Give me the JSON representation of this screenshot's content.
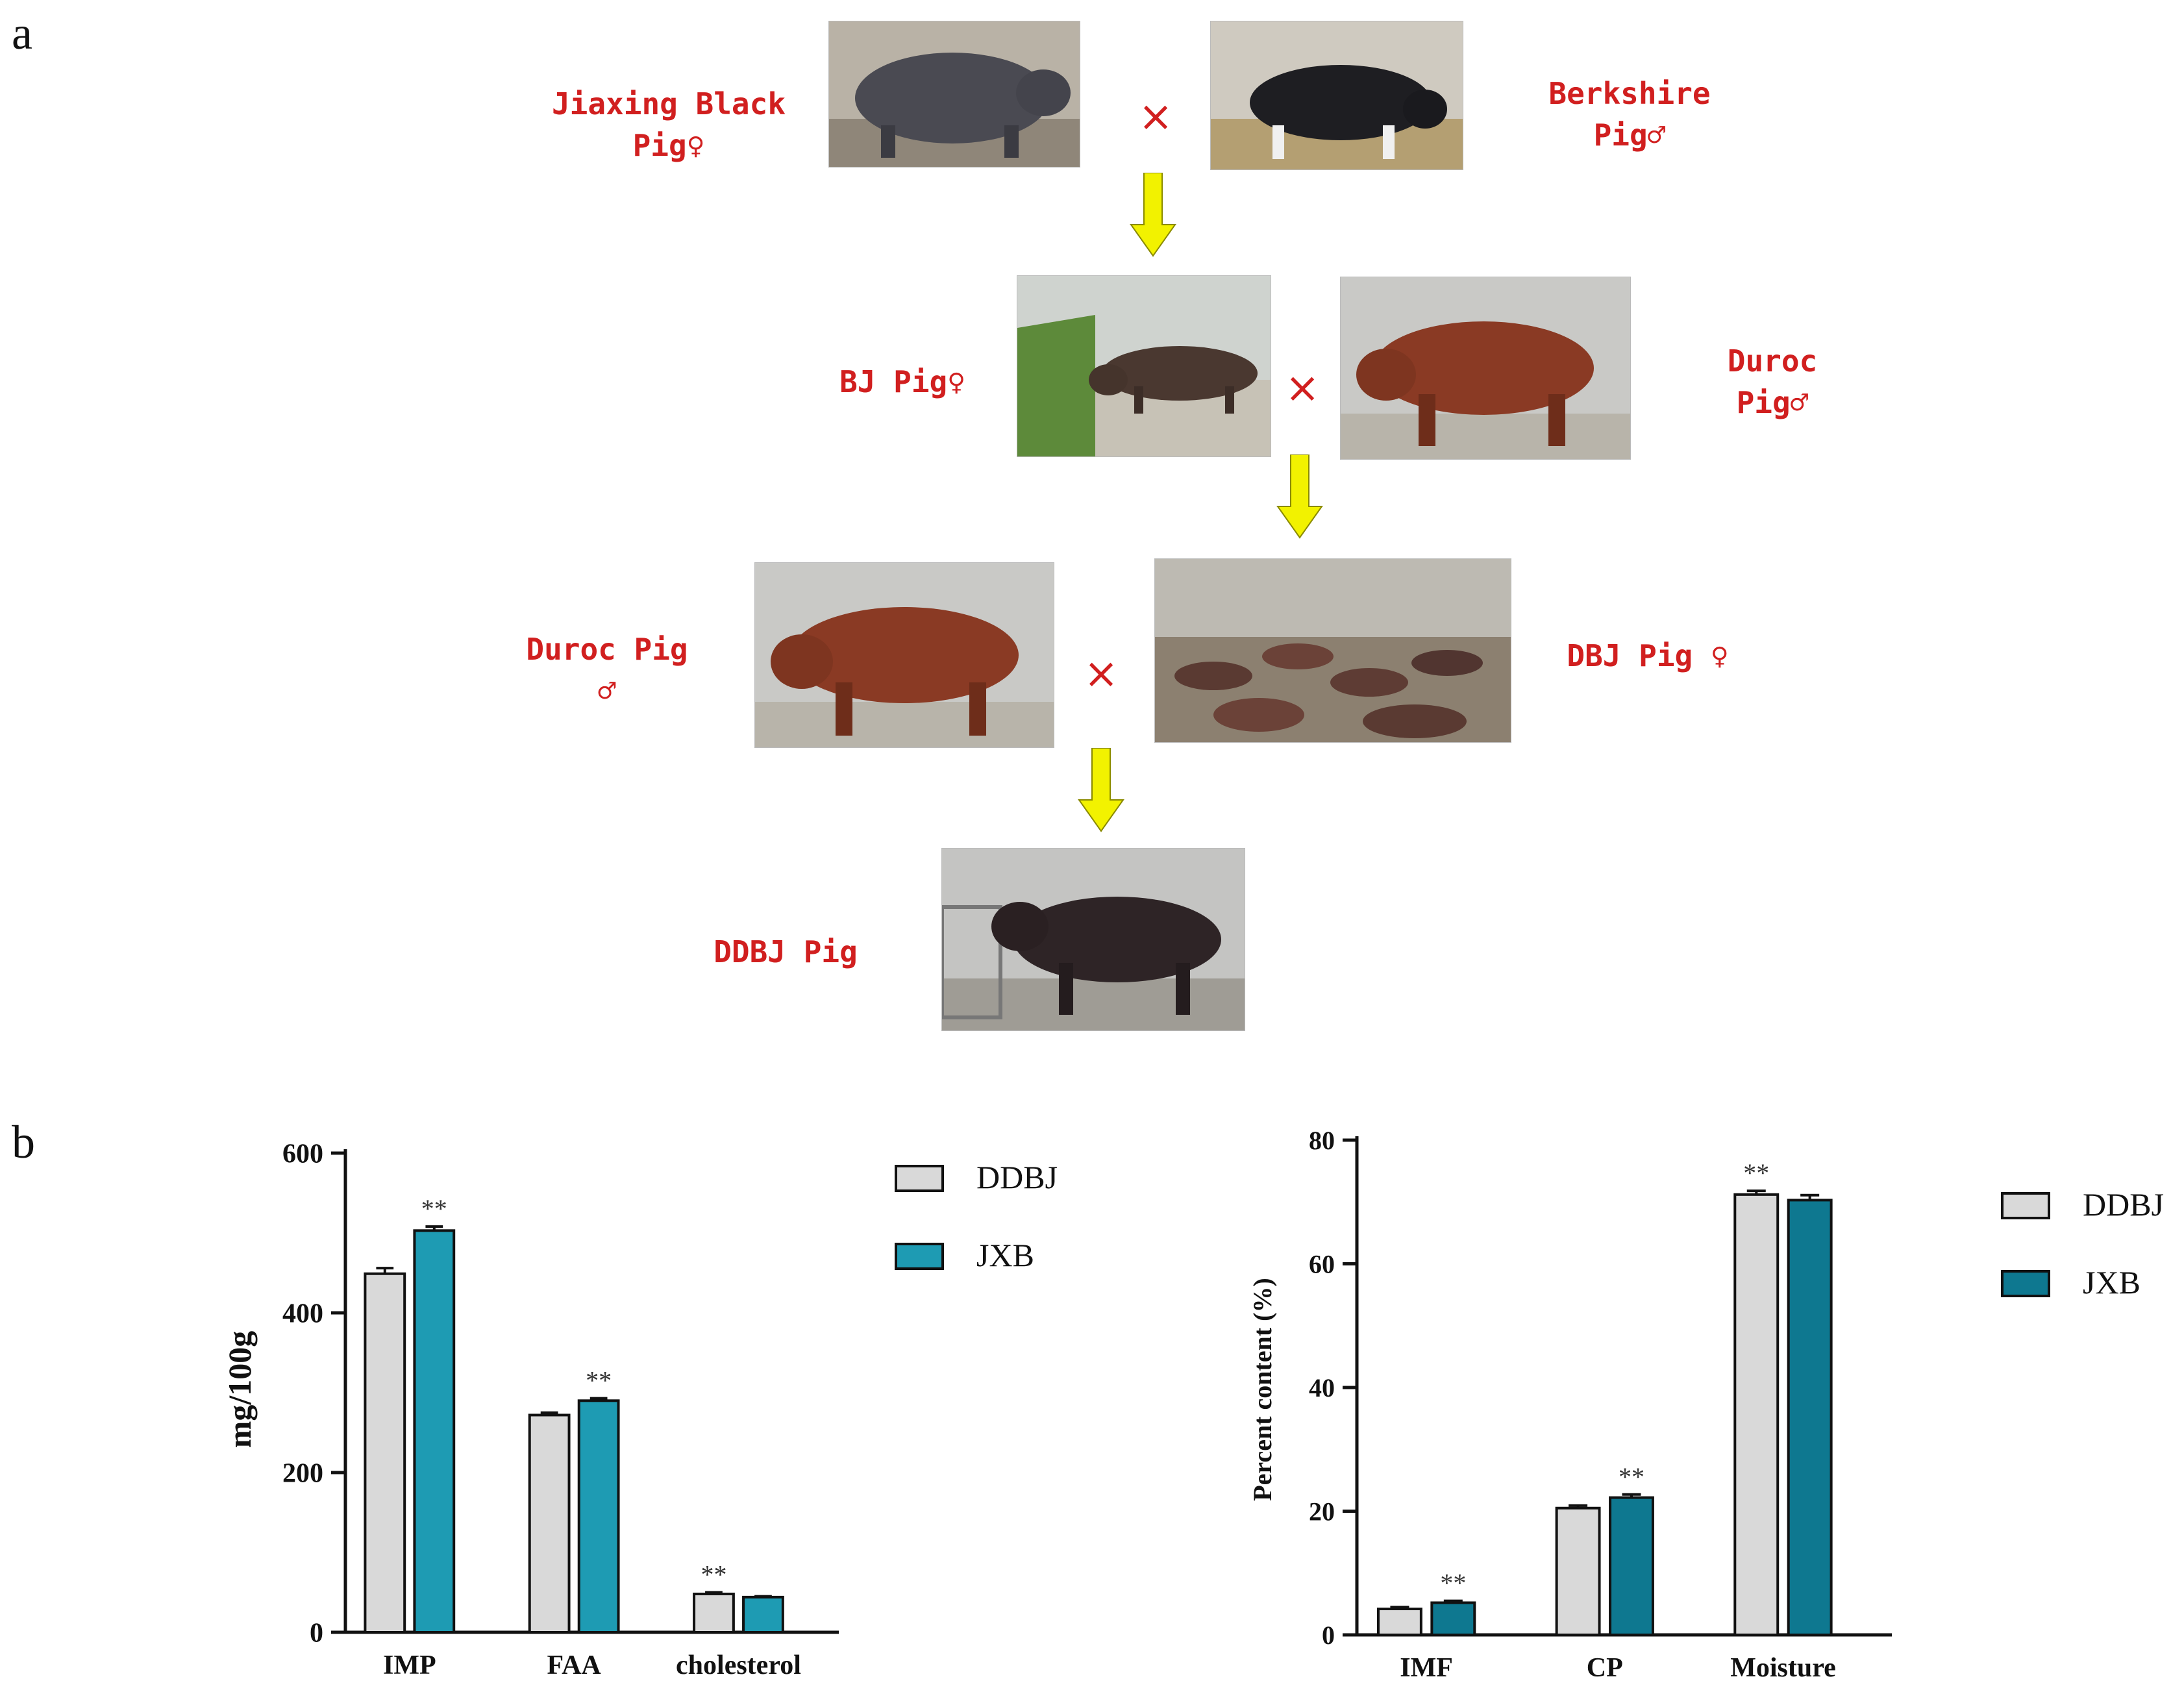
{
  "panels": {
    "a": "a",
    "b": "b"
  },
  "breeding": {
    "jiaxing": {
      "line1": "Jiaxing Black",
      "line2": "Pig♀"
    },
    "berkshire": {
      "line1": "Berkshire",
      "line2": "Pig♂"
    },
    "bj": {
      "line1": "BJ Pig♀"
    },
    "duroc1": {
      "line1": "Duroc",
      "line2": "Pig♂"
    },
    "duroc2": {
      "line1": "Duroc Pig",
      "line2": "♂"
    },
    "dbj": {
      "line1": "DBJ Pig ♀"
    },
    "ddbj": {
      "line1": "DDBJ Pig"
    },
    "cross_symbol": "×"
  },
  "colors": {
    "ddbj": "#d9d9d9",
    "jxb_left": "#1e9bb3",
    "jxb_right": "#0e7890",
    "label_red": "#d11f1f",
    "arrow": "#f2f200"
  },
  "chart_data": [
    {
      "type": "bar",
      "categories": [
        "IMP",
        "FAA",
        "cholesterol"
      ],
      "series": [
        {
          "name": "DDBJ",
          "values": [
            449,
            272,
            48
          ],
          "errors": [
            7,
            3,
            2
          ]
        },
        {
          "name": "JXB",
          "values": [
            503,
            290,
            44
          ],
          "errors": [
            5,
            3,
            1
          ]
        }
      ],
      "significance": [
        [
          "",
          "**"
        ],
        [
          "",
          "**"
        ],
        [
          "**",
          ""
        ]
      ],
      "ylabel": "mg/100g",
      "ylim": [
        0,
        600
      ],
      "yticks": [
        0,
        200,
        400,
        600
      ],
      "legend_position": "top-right",
      "grid": false
    },
    {
      "type": "bar",
      "categories": [
        "IMF",
        "CP",
        "Moisture"
      ],
      "series": [
        {
          "name": "DDBJ",
          "values": [
            4.2,
            20.5,
            71.2
          ],
          "errors": [
            0.3,
            0.4,
            0.6
          ]
        },
        {
          "name": "JXB",
          "values": [
            5.2,
            22.2,
            70.3
          ],
          "errors": [
            0.3,
            0.5,
            0.8
          ]
        }
      ],
      "significance": [
        [
          "",
          "**"
        ],
        [
          "",
          "**"
        ],
        [
          "**",
          ""
        ]
      ],
      "ylabel": "Percent content (%)",
      "ylim": [
        0,
        80
      ],
      "yticks": [
        0,
        20,
        40,
        60,
        80
      ],
      "legend_position": "top-right",
      "grid": false
    }
  ]
}
